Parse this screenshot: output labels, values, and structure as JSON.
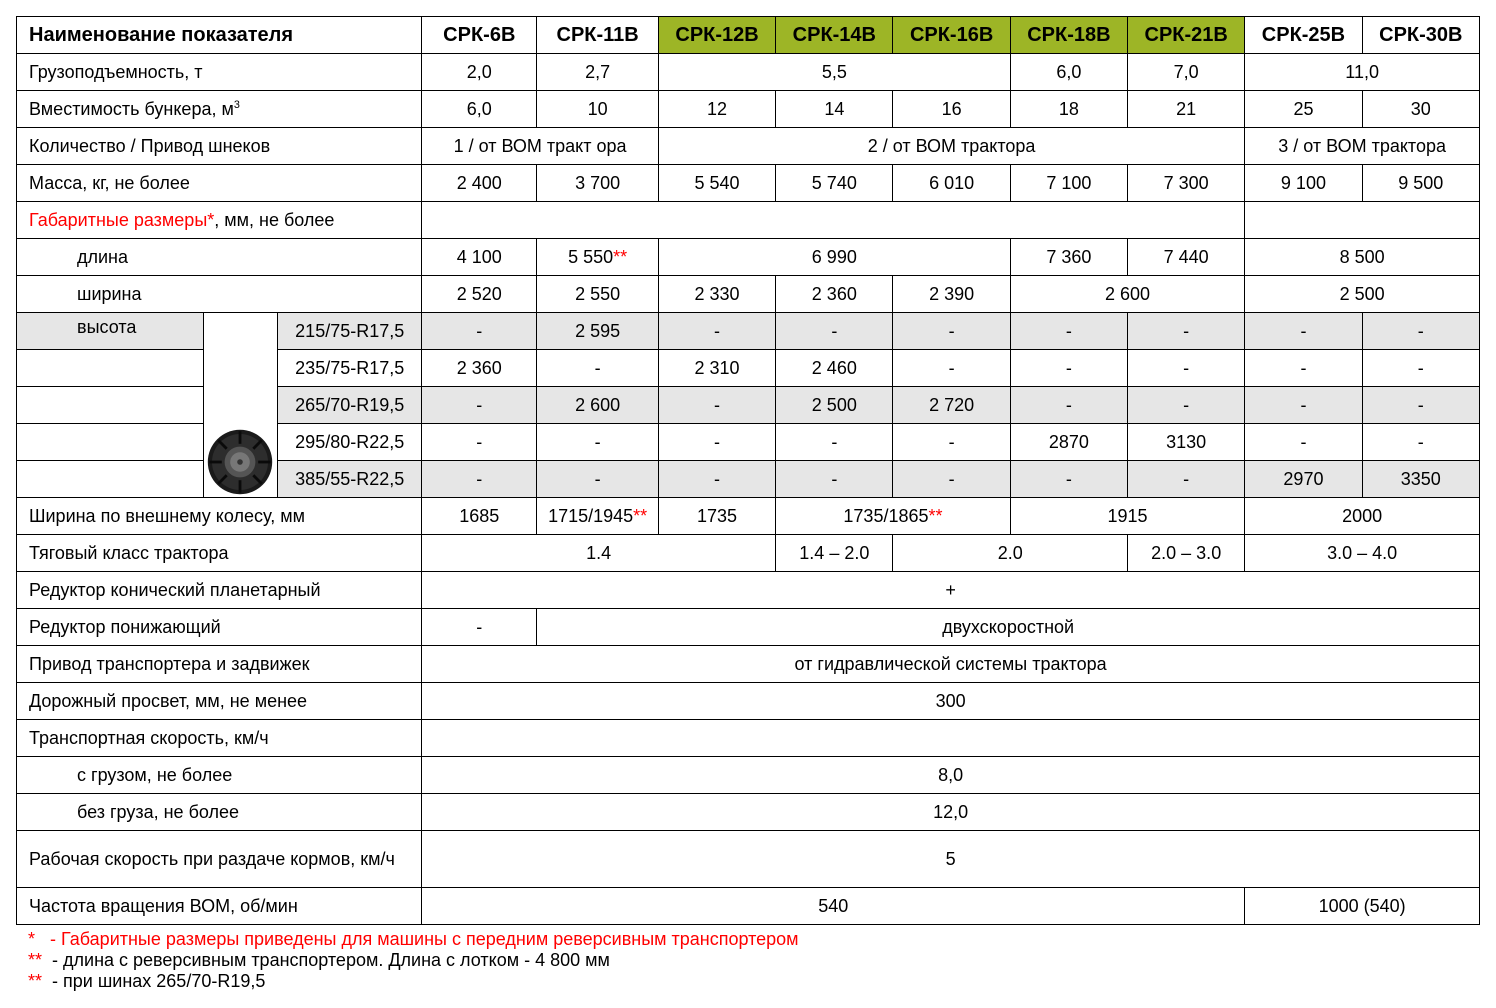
{
  "meta": {
    "highlight_color": "#9db526",
    "shade_color": "#e6e6e6",
    "border_color": "#000000",
    "text_accent_color": "#ff0000",
    "font_family": "Arial",
    "base_font_size_pt": 14
  },
  "header": {
    "title": "Наименование показателя",
    "columns": [
      "СРК-6В",
      "СРК-11В",
      "СРК-12В",
      "СРК-14В",
      "СРК-16В",
      "СРК-18В",
      "СРК-21В",
      "СРК-25В",
      "СРК-30В"
    ],
    "highlighted_idx": [
      2,
      3,
      4,
      5,
      6
    ]
  },
  "rows": {
    "capacity": {
      "label": "Грузоподъемность, т"
    },
    "bunker": {
      "label_html": "Вместимость бункера, м<sup>3</sup>"
    },
    "augers": {
      "label": "Количество / Привод шнеков"
    },
    "mass": {
      "label": "Масса, кг, не более"
    },
    "dims": {
      "label_html": "<span class=\"red\">Габаритные размеры<span class=\"red\">*</span></span>, мм, не более"
    },
    "length": {
      "label": "длина"
    },
    "width": {
      "label": "ширина"
    },
    "height": {
      "label": "высота"
    },
    "wheel_width": {
      "label": "Ширина по внешнему колесу, мм"
    },
    "tractor_class": {
      "label": "Тяговый класс трактора"
    },
    "gearbox_conic": {
      "label": "Редуктор конический планетарный"
    },
    "gearbox_low": {
      "label": "Редуктор понижающий"
    },
    "drive": {
      "label": "Привод транспортера и задвижек"
    },
    "clearance": {
      "label": "Дорожный просвет, мм, не менее"
    },
    "speed": {
      "label": "Транспортная скорость, км/ч"
    },
    "speed_loaded": {
      "label": "с грузом, не более"
    },
    "speed_empty": {
      "label": "без груза, не более"
    },
    "work_speed": {
      "label": "Рабочая скорость при раздаче кормов, км/ч"
    },
    "pto": {
      "label": "Частота вращения ВОМ,  об/мин"
    }
  },
  "tires": [
    "215/75-R17,5",
    "235/75-R17,5",
    "265/70-R19,5",
    "295/80-R22,5",
    "385/55-R22,5"
  ],
  "v": {
    "cap_6": "2,0",
    "cap_11": "2,7",
    "cap_12_16": "5,5",
    "cap_18": "6,0",
    "cap_21": "7,0",
    "cap_25_30": "11,0",
    "bun_6": "6,0",
    "bun_11": "10",
    "bun_12": "12",
    "bun_14": "14",
    "bun_16": "16",
    "bun_18": "18",
    "bun_21": "21",
    "bun_25": "25",
    "bun_30": "30",
    "aug_1": "1 / от ВОМ тракт  ора",
    "aug_2": "2 / от ВОМ трактора",
    "aug_3": "3 / от ВОМ трактора",
    "m6": "2 400",
    "m11": "3 700",
    "m12": "5 540",
    "m14": "5 740",
    "m16": "6 010",
    "m18": "7 100",
    "m21": "7 300",
    "m25": "9 100",
    "m30": "9 500",
    "len6": "4 100",
    "len11_html": "5 550<span class=\"red\">**</span>",
    "len12_16": "6 990",
    "len18": "7 360",
    "len21": "7 440",
    "len25_30": "8 500",
    "w6": "2 520",
    "w11": "2 550",
    "w12": "2 330",
    "w14": "2 360",
    "w16": "2 390",
    "w18_21": "2 600",
    "w25_30": "2 500",
    "h215_11": "2 595",
    "h235_6": "2 360",
    "h235_12": "2 310",
    "h235_14": "2 460",
    "h265_11": "2 600",
    "h265_14": "2 500",
    "h265_16": "2 720",
    "h295_18": "2870",
    "h295_21": "3130",
    "h385_25": "2970",
    "h385_30": "3350",
    "ww6": "1685",
    "ww11_html": "1715/1945<span class=\"red\">**</span>",
    "ww12": "1735",
    "ww14_16_html": "1735/1865<span class=\"red\">**</span>",
    "ww18_21": "1915",
    "ww25_30": "2000",
    "tc_6_12": "1.4",
    "tc_14": "1.4 – 2.0",
    "tc_16_18": "2.0",
    "tc_21": "2.0 – 3.0",
    "tc_25_30": "3.0 – 4.0",
    "conic_all": "+",
    "low_6": "-",
    "low_rest": "двухскоростной",
    "drive_all": "от  гидравлической  системы трактора",
    "clr_all": "300",
    "sp_loaded": "8,0",
    "sp_empty": "12,0",
    "ws_all": "5",
    "pto_main": "540",
    "pto_25_30": "1000 (540)",
    "dash": "-"
  },
  "footnotes": {
    "f1": {
      "mark": "*",
      "text": "- Габаритные размеры приведены для машины с передним реверсивным транспортером"
    },
    "f2": {
      "mark": "**",
      "text": "- длина с реверсивным транспортером. Длина с лотком - 4 800 мм"
    },
    "f3": {
      "mark": "**",
      "text": "- при шинах 265/70-R19,5"
    }
  }
}
